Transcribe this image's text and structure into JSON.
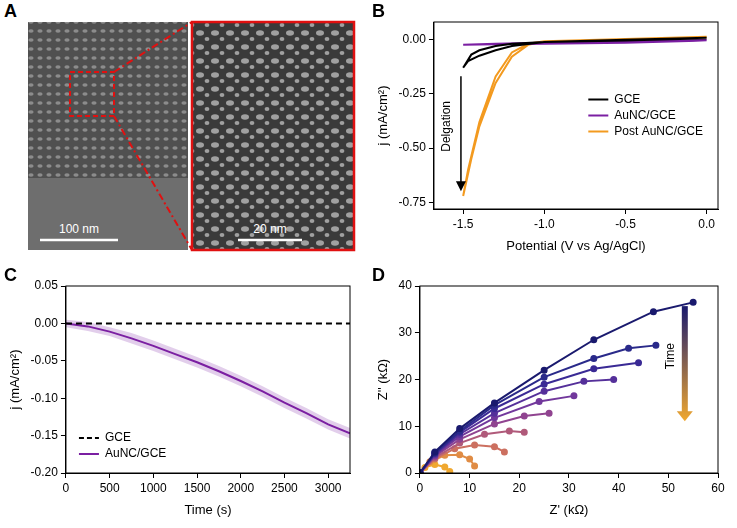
{
  "image_panel": {
    "panel": "A",
    "scale_bars": [
      "100 nm",
      "20 nm"
    ]
  },
  "chart_data": [
    {
      "panel": "B",
      "type": "line",
      "xlabel": "Potential (V vs Ag/AgCl)",
      "ylabel": "j (mA/cm²)",
      "xlim": [
        -1.68,
        0.07
      ],
      "xticks": [
        -1.5,
        {
          "value": -1,
          "label": "-1.0"
        },
        -0.5,
        {
          "value": 0,
          "label": "0.0"
        }
      ],
      "ylim": [
        -0.78,
        0.08
      ],
      "yticks": [
        -0.75,
        {
          "value": -0.5,
          "label": "-0.50"
        },
        -0.25,
        {
          "value": 0,
          "label": "0.00"
        }
      ],
      "grid": false,
      "legend": "right",
      "marker": "none",
      "series": [
        {
          "name": "GCE",
          "color": "#000000",
          "x": [
            0,
            -0.5,
            -1.0,
            -1.2,
            -1.3,
            -1.4,
            -1.45,
            -1.5,
            -1.47,
            -1.4,
            -1.3,
            -1.2,
            -1.0,
            -0.5,
            0
          ],
          "values": [
            0.005,
            -0.005,
            -0.012,
            -0.02,
            -0.03,
            -0.05,
            -0.07,
            -0.13,
            -0.1,
            -0.075,
            -0.05,
            -0.03,
            -0.012,
            -0.002,
            0.008
          ]
        },
        {
          "name": "AuNC/GCE",
          "color": "#7b1fa2",
          "x": [
            0,
            -0.5,
            -1.0,
            -1.3,
            -1.5,
            -1.3,
            -1.0,
            -0.5,
            0
          ],
          "values": [
            -0.005,
            -0.015,
            -0.02,
            -0.022,
            -0.025,
            -0.02,
            -0.015,
            -0.01,
            -0.003
          ]
        },
        {
          "name": "Post AuNC/GCE",
          "color": "#f39a1f",
          "x": [
            0,
            -0.5,
            -1.0,
            -1.1,
            -1.2,
            -1.3,
            -1.4,
            -1.45,
            -1.5,
            -1.47,
            -1.4,
            -1.3,
            -1.2,
            -1.1,
            -1.0,
            -0.5,
            0
          ],
          "values": [
            0.01,
            0,
            -0.01,
            -0.025,
            -0.08,
            -0.2,
            -0.4,
            -0.55,
            -0.72,
            -0.6,
            -0.38,
            -0.17,
            -0.06,
            -0.02,
            -0.008,
            0.002,
            0.012
          ]
        }
      ],
      "annotations": [
        {
          "text": "Delgation",
          "x": -1.6,
          "y": -0.4
        }
      ]
    },
    {
      "panel": "C",
      "type": "line",
      "xlabel": "Time (s)",
      "ylabel": "j (mA/cm²)",
      "xlim": [
        0,
        3250
      ],
      "xticks": [
        0,
        500,
        1000,
        1500,
        2000,
        2500,
        3000
      ],
      "ylim": [
        -0.2,
        0.05
      ],
      "yticks": [
        {
          "value": -0.2,
          "label": "-0.20"
        },
        -0.15,
        {
          "value": -0.1,
          "label": "-0.10"
        },
        -0.05,
        {
          "value": 0,
          "label": "0.00"
        },
        0.05
      ],
      "grid": false,
      "legend": "lower left",
      "marker": "none",
      "x": [
        0,
        250,
        500,
        750,
        1000,
        1250,
        1500,
        1750,
        2000,
        2250,
        2500,
        2750,
        3000,
        3250
      ],
      "series": [
        {
          "name": "GCE",
          "color": "#000000",
          "line_style": "dashed",
          "values": [
            0,
            0,
            0,
            0,
            0,
            0,
            0,
            0,
            0,
            0,
            0,
            0,
            0,
            0
          ]
        },
        {
          "name": "AuNC/GCE",
          "color": "#7b1fa2",
          "line_style": "solid",
          "values": [
            0,
            -0.004,
            -0.011,
            -0.02,
            -0.03,
            -0.041,
            -0.052,
            -0.064,
            -0.077,
            -0.091,
            -0.106,
            -0.12,
            -0.135,
            -0.147
          ],
          "error": [
            0.005,
            0.006,
            0.006,
            0.007,
            0.007,
            0.007,
            0.007,
            0.007,
            0.007,
            0.007,
            0.007,
            0.007,
            0.007,
            0.007
          ]
        }
      ]
    },
    {
      "panel": "D",
      "type": "line",
      "xlabel": "Z' (kΩ)",
      "ylabel": "Z'' (kΩ)",
      "xlim": [
        0,
        60
      ],
      "xticks": [
        0,
        10,
        20,
        30,
        40,
        50,
        60
      ],
      "ylim": [
        0,
        40
      ],
      "yticks": [
        0,
        10,
        20,
        30,
        40
      ],
      "grid": false,
      "marker": "circle",
      "series": [
        {
          "color": "#1a1a6e",
          "x": [
            0,
            3,
            8,
            15,
            25,
            35,
            47,
            55
          ],
          "values": [
            0,
            4.5,
            9.5,
            15,
            22,
            28.5,
            34.5,
            36.5
          ]
        },
        {
          "color": "#2a2a8a",
          "x": [
            0,
            3,
            8,
            15,
            25,
            35,
            42,
            47.5
          ],
          "values": [
            0,
            4.3,
            9,
            14.5,
            20.5,
            24.5,
            26.7,
            27.3
          ]
        },
        {
          "color": "#3a2a95",
          "x": [
            0,
            3,
            8,
            15,
            25,
            35,
            44
          ],
          "values": [
            0,
            4.2,
            8.7,
            13.8,
            19,
            22.3,
            23.6
          ]
        },
        {
          "color": "#55309a",
          "x": [
            0,
            3,
            8,
            15,
            25,
            33,
            39
          ],
          "values": [
            0,
            4,
            8.3,
            12.8,
            17.5,
            19.6,
            20
          ]
        },
        {
          "color": "#72389c",
          "x": [
            0,
            3,
            8,
            15,
            24,
            31
          ],
          "values": [
            0,
            3.8,
            7.8,
            11.8,
            15.3,
            16.5
          ]
        },
        {
          "color": "#904490",
          "x": [
            0,
            3,
            8,
            15,
            21,
            26
          ],
          "values": [
            0,
            3.6,
            7.2,
            10.5,
            12.2,
            12.8
          ]
        },
        {
          "color": "#b05a7a",
          "x": [
            0,
            3,
            8,
            13,
            18,
            21
          ],
          "values": [
            0,
            3.3,
            6.4,
            8.3,
            9,
            8.7
          ]
        },
        {
          "color": "#cc7060",
          "x": [
            0,
            3,
            7,
            11,
            15,
            17
          ],
          "values": [
            0,
            3,
            5.2,
            6,
            5.6,
            4.5
          ]
        },
        {
          "color": "#e08c45",
          "x": [
            0,
            2,
            5,
            8,
            10,
            11
          ],
          "values": [
            0,
            2.4,
            3.8,
            3.9,
            3,
            1.5
          ]
        },
        {
          "color": "#f0a830",
          "x": [
            0,
            1,
            3,
            5,
            6
          ],
          "values": [
            0,
            1.2,
            1.8,
            1.3,
            0.3
          ]
        }
      ],
      "annotations": [
        {
          "text": "Time",
          "x": 50.5,
          "y": 25
        }
      ]
    }
  ]
}
